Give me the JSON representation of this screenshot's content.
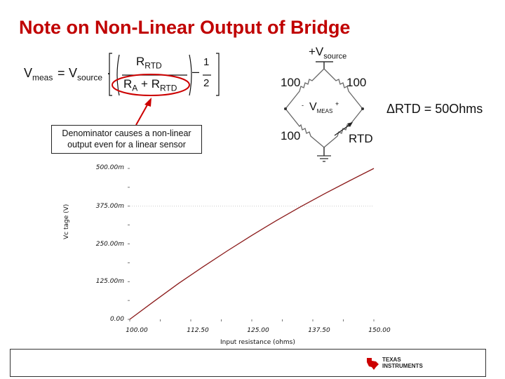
{
  "slide": {
    "title": "Note on Non-Linear Output of Bridge"
  },
  "equation": {
    "lhs_main": "V",
    "lhs_sub": "meas",
    "equals": "=",
    "vsource_main": "V",
    "vsource_sub": "source",
    "dot": "·",
    "num_main": "R",
    "num_sub": "RTD",
    "den_a_main": "R",
    "den_a_sub": "A",
    "den_plus": "+",
    "den_b_main": "R",
    "den_b_sub": "RTD",
    "minus": "–",
    "half_num": "1",
    "half_den": "2"
  },
  "callout": {
    "line1": "Denominator causes a non-linear",
    "line2": "output even for a linear sensor"
  },
  "bridge": {
    "vsource_prefix": "+V",
    "vsource_sub": "source",
    "r_top_left": "100",
    "r_top_right": "100",
    "r_bottom_left": "100",
    "rtd_label": "RTD",
    "vmeas_main": "V",
    "vmeas_sub": "MEAS",
    "minus_sign": "-",
    "plus_sign": "+",
    "delta_label": "ΔRTD = 50Ohms"
  },
  "chart_data": {
    "type": "line",
    "xlabel": "Input resistance (ohms)",
    "ylabel": "Vc tage (V)",
    "x_ticks": [
      "100.00",
      "112.50",
      "125.00",
      "137.50",
      "150.00"
    ],
    "y_ticks": [
      "0.00",
      "125.00m",
      "250.00m",
      "375.00m",
      "500.00m"
    ],
    "xlim": [
      100,
      150
    ],
    "ylim": [
      0,
      500
    ],
    "series": [
      {
        "color": "#8b1a1a",
        "x": [
          100,
          105,
          110,
          115,
          120,
          125,
          130,
          135,
          140,
          145,
          150
        ],
        "y": [
          0,
          60,
          119,
          174,
          227,
          278,
          327,
          373,
          417,
          459,
          500
        ]
      }
    ]
  },
  "footer": {
    "logo_line1": "Texas",
    "logo_line2": "Instruments",
    "logo_color": "#cc0000"
  }
}
